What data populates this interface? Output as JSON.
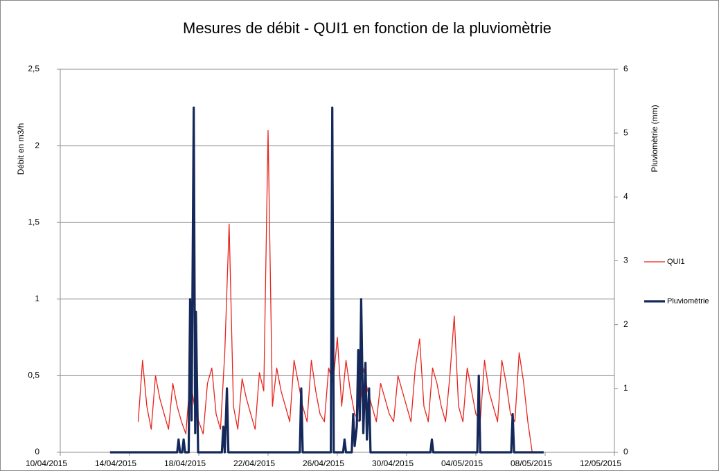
{
  "chart_data": {
    "type": "line",
    "title": "Mesures de débit - QUI1  en fonction de la pluviomètrie",
    "y_label": "Débit en m3/h",
    "y2_label": "Pluviomètrie (mm)",
    "legend": "right",
    "grid": true,
    "xlim": [
      "2015-04-10",
      "2015-05-12"
    ],
    "xticks": [
      {
        "value": "2015-04-10",
        "label": "10/04/2015"
      },
      {
        "value": "2015-04-14",
        "label": "14/04/2015"
      },
      {
        "value": "2015-04-18",
        "label": "18/04/2015"
      },
      {
        "value": "2015-04-22",
        "label": "22/04/2015"
      },
      {
        "value": "2015-04-26",
        "label": "26/04/2015"
      },
      {
        "value": "2015-04-30",
        "label": "30/04/2015"
      },
      {
        "value": "2015-05-04",
        "label": "04/05/2015"
      },
      {
        "value": "2015-05-08",
        "label": "08/05/2015"
      },
      {
        "value": "2015-05-12",
        "label": "12/05/2015"
      }
    ],
    "ylim": [
      0,
      2.5
    ],
    "yticks": [
      0,
      {
        "value": 0.5,
        "label": "0,5"
      },
      1,
      {
        "value": 1.5,
        "label": "1,5"
      },
      2,
      {
        "value": 2.5,
        "label": "2,5"
      }
    ],
    "y2lim": [
      0,
      6
    ],
    "y2ticks": [
      0,
      1,
      2,
      3,
      4,
      5,
      6
    ],
    "series": [
      {
        "name": "QUI1",
        "color": "#e8231c",
        "width": 1.3,
        "x": [
          "2015-04-14T12",
          "2015-04-14T18",
          "2015-04-15T00",
          "2015-04-15T06",
          "2015-04-15T12",
          "2015-04-15T18",
          "2015-04-16T00",
          "2015-04-16T06",
          "2015-04-16T12",
          "2015-04-16T18",
          "2015-04-17T00",
          "2015-04-17T06",
          "2015-04-17T12",
          "2015-04-17T18",
          "2015-04-18T00",
          "2015-04-18T06",
          "2015-04-18T12",
          "2015-04-18T18",
          "2015-04-19T00",
          "2015-04-19T06",
          "2015-04-19T12",
          "2015-04-19T18",
          "2015-04-20T00",
          "2015-04-20T06",
          "2015-04-20T12",
          "2015-04-20T18",
          "2015-04-21T00",
          "2015-04-21T06",
          "2015-04-21T12",
          "2015-04-21T18",
          "2015-04-22T00",
          "2015-04-22T06",
          "2015-04-22T12",
          "2015-04-22T18",
          "2015-04-23T00",
          "2015-04-23T06",
          "2015-04-23T12",
          "2015-04-23T18",
          "2015-04-24T00",
          "2015-04-24T06",
          "2015-04-24T12",
          "2015-04-24T18",
          "2015-04-25T00",
          "2015-04-25T06",
          "2015-04-25T12",
          "2015-04-25T18",
          "2015-04-26T00",
          "2015-04-26T06",
          "2015-04-26T12",
          "2015-04-26T18",
          "2015-04-27T00",
          "2015-04-27T06",
          "2015-04-27T12",
          "2015-04-27T18",
          "2015-04-28T00",
          "2015-04-28T06",
          "2015-04-28T12",
          "2015-04-28T18",
          "2015-04-29T00",
          "2015-04-29T06",
          "2015-04-29T12",
          "2015-04-29T18",
          "2015-04-30T00",
          "2015-04-30T06",
          "2015-04-30T12",
          "2015-04-30T18",
          "2015-05-01T00",
          "2015-05-01T06",
          "2015-05-01T12",
          "2015-05-01T18",
          "2015-05-02T00",
          "2015-05-02T06",
          "2015-05-02T12",
          "2015-05-02T18",
          "2015-05-03T00",
          "2015-05-03T06",
          "2015-05-03T12",
          "2015-05-03T18",
          "2015-05-04T00",
          "2015-05-04T06",
          "2015-05-04T12",
          "2015-05-04T18",
          "2015-05-05T00",
          "2015-05-05T06",
          "2015-05-05T12",
          "2015-05-05T18",
          "2015-05-06T00",
          "2015-05-06T06",
          "2015-05-06T12",
          "2015-05-06T18",
          "2015-05-07T00",
          "2015-05-07T06"
        ],
        "values": [
          0.2,
          0.6,
          0.3,
          0.15,
          0.5,
          0.35,
          0.25,
          0.15,
          0.45,
          0.3,
          0.2,
          0.12,
          0.48,
          0.3,
          0.2,
          0.12,
          0.45,
          0.55,
          0.25,
          0.15,
          0.65,
          1.49,
          0.3,
          0.15,
          0.48,
          0.35,
          0.25,
          0.15,
          0.52,
          0.4,
          2.1,
          0.3,
          0.55,
          0.4,
          0.3,
          0.2,
          0.6,
          0.45,
          0.3,
          0.2,
          0.6,
          0.4,
          0.25,
          0.2,
          0.55,
          0.45,
          0.75,
          0.3,
          0.6,
          0.4,
          0.25,
          0.2,
          0.55,
          0.4,
          0.3,
          0.2,
          0.45,
          0.35,
          0.25,
          0.2,
          0.5,
          0.4,
          0.3,
          0.2,
          0.55,
          0.74,
          0.3,
          0.2,
          0.55,
          0.45,
          0.3,
          0.2,
          0.5,
          0.89,
          0.3,
          0.2,
          0.55,
          0.4,
          0.25,
          0.2,
          0.6,
          0.4,
          0.3,
          0.2,
          0.6,
          0.45,
          0.25,
          0.2,
          0.65,
          0.46,
          0.2,
          0
        ]
      },
      {
        "name": "Pluviomètrie",
        "color": "#14285a",
        "width": 3.2,
        "axis": "y2",
        "x": [
          "2015-04-12T21",
          "2015-04-16T18",
          "2015-04-16T20",
          "2015-04-16T22",
          "2015-04-17T01",
          "2015-04-17T03",
          "2015-04-17T05",
          "2015-04-17T10",
          "2015-04-17T12",
          "2015-04-17T14",
          "2015-04-17T17",
          "2015-04-17T19",
          "2015-04-17T20",
          "2015-04-17T23",
          "2015-04-19T08",
          "2015-04-19T10",
          "2015-04-19T12",
          "2015-04-19T15",
          "2015-04-19T17",
          "2015-04-23T20",
          "2015-04-23T22",
          "2015-04-24T00",
          "2015-04-25T15",
          "2015-04-25T17",
          "2015-04-25T19",
          "2015-04-26T08",
          "2015-04-26T10",
          "2015-04-26T12",
          "2015-04-26T20",
          "2015-04-26T22",
          "2015-04-27T00",
          "2015-04-27T03",
          "2015-04-27T05",
          "2015-04-27T07",
          "2015-04-27T09",
          "2015-04-27T12",
          "2015-04-27T15",
          "2015-04-27T17",
          "2015-04-27T20",
          "2015-04-27T22",
          "2015-05-01T09",
          "2015-05-01T11",
          "2015-05-01T13",
          "2015-05-04T02",
          "2015-05-04T04",
          "2015-05-04T06",
          "2015-05-06T01",
          "2015-05-06T03",
          "2015-05-06T05",
          "2015-05-07T22"
        ],
        "values": [
          0,
          0,
          0.2,
          0,
          0,
          0.2,
          0,
          0,
          2.4,
          0.5,
          5.4,
          0.3,
          2.2,
          0,
          0,
          0.4,
          0,
          1,
          0,
          0,
          1,
          0,
          0,
          5.4,
          0,
          0,
          0.2,
          0,
          0,
          0.6,
          0.1,
          0.4,
          1.6,
          0.5,
          2.4,
          0.3,
          1.4,
          0.2,
          1,
          0,
          0,
          0.2,
          0,
          0,
          1.2,
          0,
          0,
          0.6,
          0,
          0
        ]
      }
    ]
  }
}
